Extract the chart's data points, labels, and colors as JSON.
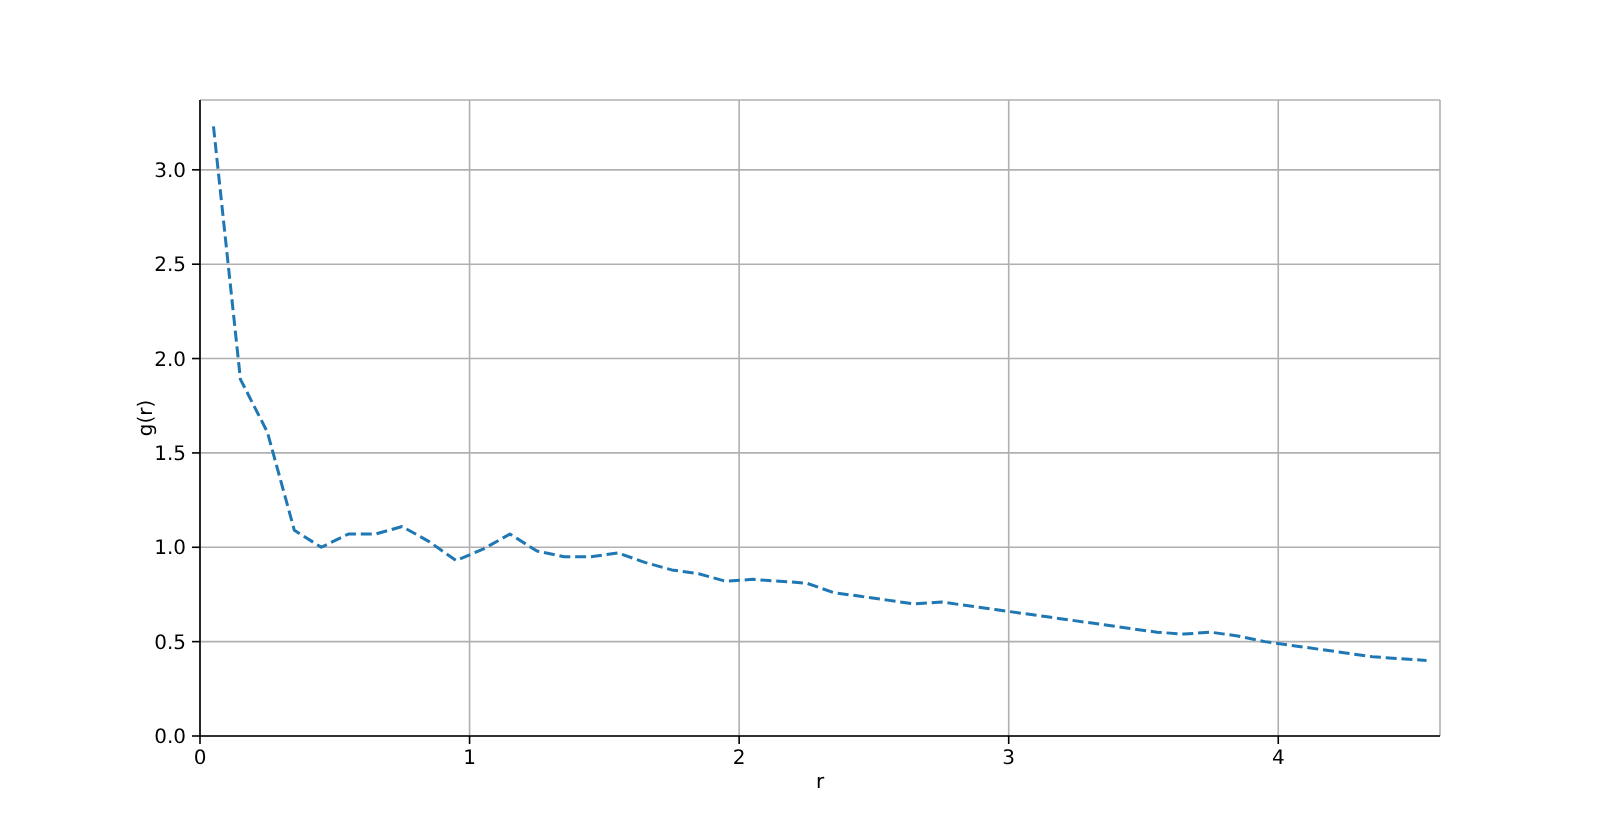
{
  "chart_data": {
    "type": "line",
    "xlabel": "r",
    "ylabel": "g(r)",
    "x": [
      0.05,
      0.15,
      0.25,
      0.35,
      0.45,
      0.55,
      0.65,
      0.75,
      0.85,
      0.95,
      1.05,
      1.15,
      1.25,
      1.35,
      1.45,
      1.55,
      1.65,
      1.75,
      1.85,
      1.95,
      2.05,
      2.15,
      2.25,
      2.35,
      2.45,
      2.55,
      2.65,
      2.75,
      2.85,
      2.95,
      3.05,
      3.15,
      3.25,
      3.35,
      3.45,
      3.55,
      3.65,
      3.75,
      3.85,
      3.95,
      4.05,
      4.15,
      4.25,
      4.35,
      4.45,
      4.55
    ],
    "values": [
      3.23,
      1.89,
      1.61,
      1.09,
      1.0,
      1.07,
      1.07,
      1.11,
      1.03,
      0.93,
      0.99,
      1.07,
      0.98,
      0.95,
      0.95,
      0.97,
      0.92,
      0.88,
      0.86,
      0.82,
      0.83,
      0.82,
      0.81,
      0.76,
      0.74,
      0.72,
      0.7,
      0.71,
      0.69,
      0.67,
      0.65,
      0.63,
      0.61,
      0.59,
      0.57,
      0.55,
      0.54,
      0.55,
      0.53,
      0.5,
      0.48,
      0.46,
      0.44,
      0.42,
      0.41,
      0.4
    ],
    "color": "#1f77b4",
    "line_style": "dashed",
    "marker": "none",
    "grid": true,
    "xlim": [
      0,
      4.6
    ],
    "ylim": [
      0,
      3.37
    ],
    "xticks": [
      0,
      1,
      2,
      3,
      4
    ],
    "yticks": [
      {
        "value": 0,
        "label": "0.0"
      },
      0.5,
      {
        "value": 1,
        "label": "1.0"
      },
      1.5,
      {
        "value": 2,
        "label": "2.0"
      },
      2.5,
      {
        "value": 3,
        "label": "3.0"
      }
    ]
  }
}
